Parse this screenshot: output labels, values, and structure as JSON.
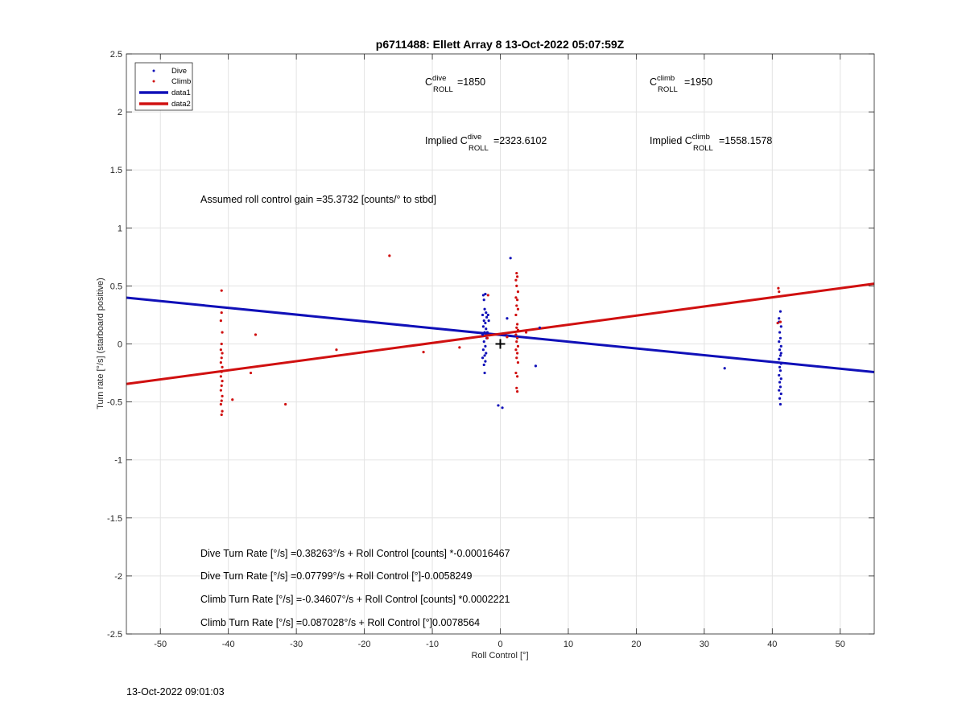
{
  "colors": {
    "dive": "#1010b8",
    "climb": "#d01010",
    "axis": "#262626",
    "grid": "#e3e3e3"
  },
  "timestamp": "13-Oct-2022 09:01:03",
  "chart_data": {
    "type": "scatter",
    "title": "p6711488: Ellett Array 8 13-Oct-2022 05:07:59Z",
    "xlabel": "Roll Control [°]",
    "ylabel": "Turn rate [°/s] (starboard positive)",
    "xlim": [
      -55,
      55
    ],
    "ylim": [
      -2.5,
      2.5
    ],
    "xticks": [
      -50,
      -40,
      -30,
      -20,
      -10,
      0,
      10,
      20,
      30,
      40,
      50
    ],
    "yticks": [
      -2.5,
      -2,
      -1.5,
      -1,
      -0.5,
      0,
      0.5,
      1,
      1.5,
      2,
      2.5
    ],
    "grid": true,
    "legend_position": "top-left",
    "legend": [
      {
        "label": "Dive",
        "kind": "marker",
        "color": "#1010b8"
      },
      {
        "label": "Climb",
        "kind": "marker",
        "color": "#d01010"
      },
      {
        "label": "data1",
        "kind": "line",
        "color": "#1010b8"
      },
      {
        "label": "data2",
        "kind": "line",
        "color": "#d01010"
      }
    ],
    "series": [
      {
        "name": "Dive",
        "kind": "points",
        "color": "#1010b8",
        "points": [
          [
            -2.5,
            0.42
          ],
          [
            -2.4,
            0.38
          ],
          [
            -2.2,
            0.43
          ],
          [
            -2.3,
            0.3
          ],
          [
            -2.1,
            0.27
          ],
          [
            -2.6,
            0.25
          ],
          [
            -2.0,
            0.23
          ],
          [
            -2.4,
            0.2
          ],
          [
            -2.2,
            0.18
          ],
          [
            -2.5,
            0.15
          ],
          [
            -2.1,
            0.13
          ],
          [
            -2.3,
            0.1
          ],
          [
            -2.6,
            0.08
          ],
          [
            -2.0,
            0.05
          ],
          [
            -2.4,
            0.02
          ],
          [
            -2.2,
            -0.02
          ],
          [
            -2.5,
            -0.05
          ],
          [
            -2.1,
            -0.08
          ],
          [
            -2.3,
            -0.1
          ],
          [
            -2.6,
            -0.12
          ],
          [
            -2.2,
            -0.15
          ],
          [
            -2.4,
            -0.18
          ],
          [
            -2.3,
            -0.25
          ],
          [
            -1.8,
            0.25
          ],
          [
            -1.7,
            0.2
          ],
          [
            -1.9,
            0.1
          ],
          [
            5.8,
            0.14
          ],
          [
            5.2,
            -0.19
          ],
          [
            -0.3,
            -0.53
          ],
          [
            0.3,
            -0.55
          ],
          [
            1.5,
            0.74
          ],
          [
            1.0,
            0.22
          ],
          [
            33.0,
            -0.21
          ],
          [
            41.2,
            0.28
          ],
          [
            41.0,
            0.22
          ],
          [
            41.3,
            0.15
          ],
          [
            41.1,
            0.1
          ],
          [
            41.2,
            0.05
          ],
          [
            41.0,
            0.02
          ],
          [
            41.3,
            -0.02
          ],
          [
            41.1,
            -0.05
          ],
          [
            41.2,
            -0.1
          ],
          [
            41.0,
            -0.13
          ],
          [
            41.3,
            -0.17
          ],
          [
            41.1,
            -0.2
          ],
          [
            41.2,
            -0.23
          ],
          [
            41.0,
            -0.27
          ],
          [
            41.3,
            -0.3
          ],
          [
            41.1,
            -0.33
          ],
          [
            41.2,
            -0.37
          ],
          [
            41.0,
            -0.4
          ],
          [
            41.3,
            -0.43
          ],
          [
            41.1,
            -0.47
          ],
          [
            41.2,
            -0.52
          ],
          [
            41.0,
            0.19
          ],
          [
            41.3,
            -0.08
          ]
        ]
      },
      {
        "name": "Climb",
        "kind": "points",
        "color": "#d01010",
        "points": [
          [
            -41.0,
            0.46
          ],
          [
            -41.0,
            0.27
          ],
          [
            -41.1,
            0.2
          ],
          [
            -40.9,
            0.1
          ],
          [
            -41.0,
            0.0
          ],
          [
            -41.1,
            -0.05
          ],
          [
            -40.9,
            -0.08
          ],
          [
            -41.0,
            -0.12
          ],
          [
            -41.1,
            -0.16
          ],
          [
            -40.9,
            -0.2
          ],
          [
            -41.0,
            -0.24
          ],
          [
            -41.1,
            -0.28
          ],
          [
            -40.9,
            -0.32
          ],
          [
            -41.0,
            -0.36
          ],
          [
            -41.1,
            -0.4
          ],
          [
            -40.9,
            -0.45
          ],
          [
            -41.0,
            -0.49
          ],
          [
            -41.1,
            -0.52
          ],
          [
            -40.9,
            -0.58
          ],
          [
            -41.0,
            -0.61
          ],
          [
            -39.4,
            -0.48
          ],
          [
            -36.7,
            -0.25
          ],
          [
            -36.0,
            0.08
          ],
          [
            -31.6,
            -0.52
          ],
          [
            -24.1,
            -0.05
          ],
          [
            -16.3,
            0.76
          ],
          [
            -11.3,
            -0.07
          ],
          [
            -6.0,
            -0.03
          ],
          [
            -1.8,
            0.42
          ],
          [
            -1.9,
            0.05
          ],
          [
            3.8,
            0.1
          ],
          [
            1.0,
            0.06
          ],
          [
            2.4,
            0.61
          ],
          [
            2.5,
            0.58
          ],
          [
            2.3,
            0.55
          ],
          [
            2.4,
            0.5
          ],
          [
            2.6,
            0.45
          ],
          [
            2.3,
            0.4
          ],
          [
            2.5,
            0.38
          ],
          [
            2.4,
            0.33
          ],
          [
            2.6,
            0.3
          ],
          [
            2.3,
            0.25
          ],
          [
            2.5,
            0.17
          ],
          [
            2.4,
            0.14
          ],
          [
            2.6,
            0.12
          ],
          [
            2.3,
            0.08
          ],
          [
            2.5,
            0.05
          ],
          [
            2.4,
            0.02
          ],
          [
            2.6,
            -0.02
          ],
          [
            2.3,
            -0.05
          ],
          [
            2.5,
            -0.08
          ],
          [
            2.4,
            -0.12
          ],
          [
            2.6,
            -0.16
          ],
          [
            2.3,
            -0.25
          ],
          [
            2.5,
            -0.28
          ],
          [
            2.4,
            -0.38
          ],
          [
            2.5,
            -0.41
          ],
          [
            40.9,
            0.48
          ],
          [
            41.0,
            0.45
          ],
          [
            41.2,
            0.19
          ],
          [
            40.8,
            0.18
          ]
        ]
      },
      {
        "name": "data1",
        "kind": "line",
        "color": "#1010b8",
        "x": [
          -55,
          55
        ],
        "y": [
          0.39838,
          -0.24238
        ]
      },
      {
        "name": "data2",
        "kind": "line",
        "color": "#d01010",
        "x": [
          -55,
          55
        ],
        "y": [
          -0.34507,
          0.51913
        ]
      }
    ],
    "marker": {
      "x": 0,
      "y": 0,
      "symbol": "+"
    },
    "annotations": {
      "c_roll_dive": {
        "prefix": "C",
        "sup": "dive",
        "sub": "ROLL",
        "value": "=1850"
      },
      "c_roll_climb": {
        "prefix": "C",
        "sup": "climb",
        "sub": "ROLL",
        "value": "=1950"
      },
      "implied_dive": {
        "prefix": "Implied C",
        "sup": "dive",
        "sub": "ROLL",
        "value": "=2323.6102"
      },
      "implied_climb": {
        "prefix": "Implied C",
        "sup": "climb",
        "sub": "ROLL",
        "value": "=1558.1578"
      },
      "gain": "Assumed roll control gain =35.3732 [counts/° to stbd]",
      "fits": [
        "Dive Turn Rate [°/s] =0.38263°/s + Roll Control [counts] *-0.00016467",
        "Dive Turn Rate [°/s] =0.07799°/s + Roll Control [°]-0.0058249",
        "Climb Turn Rate [°/s] =-0.34607°/s + Roll Control [counts] *0.0002221",
        "Climb Turn Rate [°/s] =0.087028°/s + Roll Control [°]0.0078564"
      ]
    }
  }
}
